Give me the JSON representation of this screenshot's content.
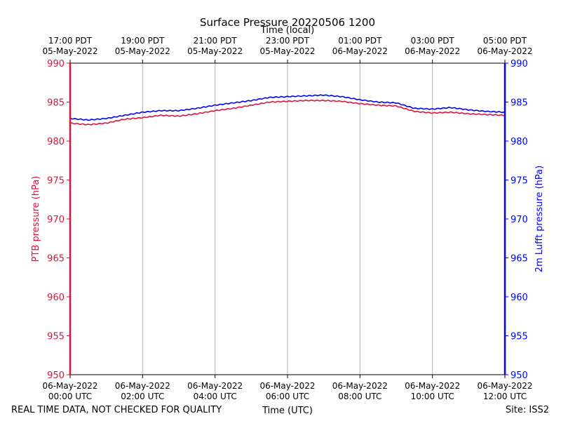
{
  "chart_data": {
    "type": "line",
    "title": "Surface Pressure 20220506 1200",
    "top_axis_label": "Time (local)",
    "xlabel": "Time (UTC)",
    "ylabel_left": "PTB pressure (hPa)",
    "ylabel_right": "2m Lufft pressure (hPa)",
    "footer_left": "REAL TIME DATA, NOT CHECKED FOR QUALITY",
    "footer_right": "Site: ISS2",
    "xlim": [
      0,
      12
    ],
    "ylim": [
      950,
      990
    ],
    "grid": "x-only",
    "y_ticks": [
      950,
      955,
      960,
      965,
      970,
      975,
      980,
      985,
      990
    ],
    "x_ticks_utc": [
      {
        "x": 0,
        "line1": "06-May-2022",
        "line2": "00:00 UTC"
      },
      {
        "x": 2,
        "line1": "06-May-2022",
        "line2": "02:00 UTC"
      },
      {
        "x": 4,
        "line1": "06-May-2022",
        "line2": "04:00 UTC"
      },
      {
        "x": 6,
        "line1": "06-May-2022",
        "line2": "06:00 UTC"
      },
      {
        "x": 8,
        "line1": "06-May-2022",
        "line2": "08:00 UTC"
      },
      {
        "x": 10,
        "line1": "06-May-2022",
        "line2": "10:00 UTC"
      },
      {
        "x": 12,
        "line1": "06-May-2022",
        "line2": "12:00 UTC"
      }
    ],
    "x_ticks_local": [
      {
        "x": 0,
        "line1": "17:00 PDT",
        "line2": "05-May-2022"
      },
      {
        "x": 2,
        "line1": "19:00 PDT",
        "line2": "05-May-2022"
      },
      {
        "x": 4,
        "line1": "21:00 PDT",
        "line2": "05-May-2022"
      },
      {
        "x": 6,
        "line1": "23:00 PDT",
        "line2": "05-May-2022"
      },
      {
        "x": 8,
        "line1": "01:00 PDT",
        "line2": "06-May-2022"
      },
      {
        "x": 10,
        "line1": "03:00 PDT",
        "line2": "06-May-2022"
      },
      {
        "x": 12,
        "line1": "05:00 PDT",
        "line2": "06-May-2022"
      }
    ],
    "colors": {
      "left": "#dc143c",
      "right": "#0000ff",
      "grid": "#b0b0b0",
      "text": "#000000"
    },
    "series": [
      {
        "name": "PTB pressure",
        "axis": "left",
        "color": "#dc143c",
        "x": [
          0,
          0.5,
          1,
          1.5,
          2,
          2.5,
          3,
          3.5,
          4,
          4.5,
          5,
          5.5,
          6,
          6.5,
          7,
          7.5,
          8,
          8.5,
          9,
          9.5,
          10,
          10.5,
          11,
          11.5,
          12
        ],
        "values": [
          982.3,
          982.1,
          982.3,
          982.8,
          983.0,
          983.3,
          983.2,
          983.5,
          983.9,
          984.2,
          984.6,
          985.0,
          985.1,
          985.2,
          985.2,
          985.1,
          984.8,
          984.6,
          984.5,
          983.8,
          983.6,
          983.7,
          983.5,
          983.4,
          983.3
        ]
      },
      {
        "name": "2m Lufft pressure",
        "axis": "right",
        "color": "#0000ff",
        "x": [
          0,
          0.5,
          1,
          1.5,
          2,
          2.5,
          3,
          3.5,
          4,
          4.5,
          5,
          5.5,
          6,
          6.5,
          7,
          7.5,
          8,
          8.5,
          9,
          9.5,
          10,
          10.5,
          11,
          11.5,
          12
        ],
        "values": [
          982.9,
          982.7,
          982.9,
          983.3,
          983.7,
          983.9,
          983.9,
          984.2,
          984.6,
          984.9,
          985.2,
          985.6,
          985.7,
          985.8,
          985.9,
          985.7,
          985.3,
          985.0,
          984.9,
          984.2,
          984.1,
          984.3,
          984.0,
          983.8,
          983.7
        ]
      }
    ]
  }
}
